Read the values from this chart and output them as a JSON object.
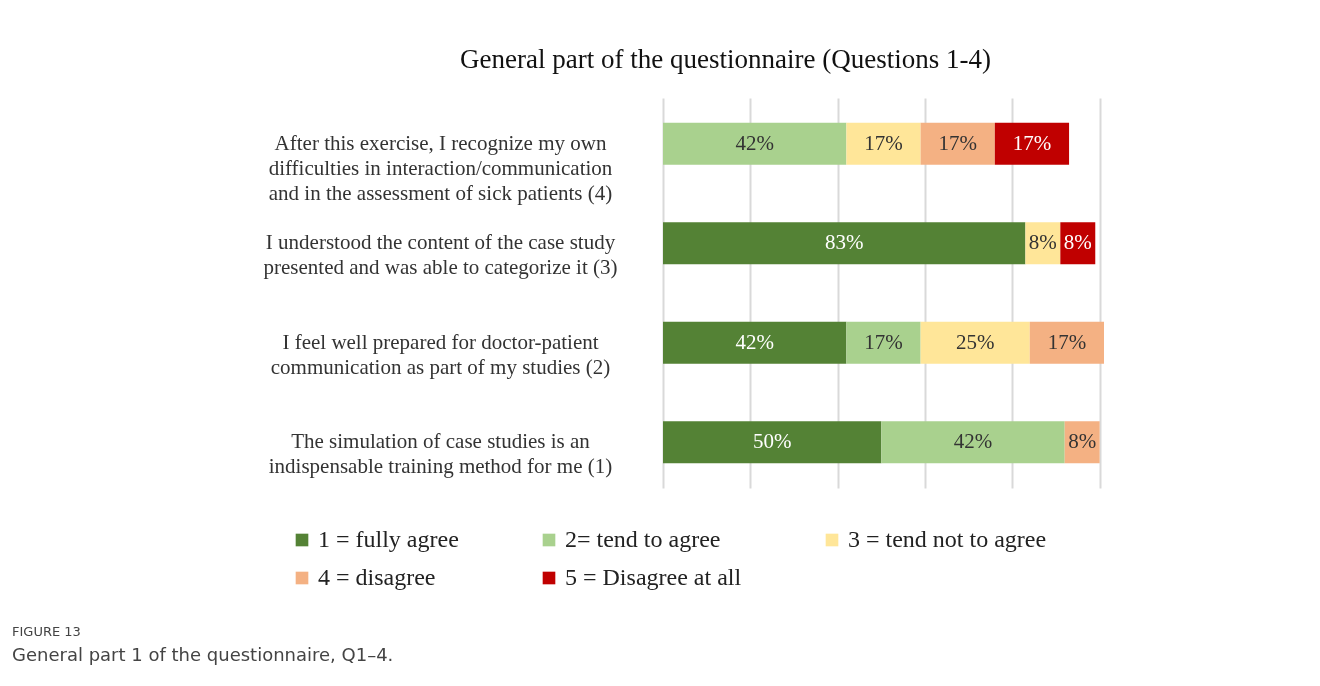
{
  "chart_data": {
    "type": "bar",
    "orientation": "horizontal",
    "stacked": true,
    "title": "General part of the questionnaire (Questions 1-4)",
    "categories": [
      "After this exercise, I recognize my own difficulties in interaction/communication and in the assessment of sick patients (4)",
      "I understood the content of the case study presented and was able to categorize it (3)",
      "I feel well prepared for doctor-patient communication as part of my studies (2)",
      "The simulation of case studies is an indispensable training method for me (1)"
    ],
    "series": [
      {
        "name": "1 = fully agree",
        "color": "#548235",
        "values": [
          null,
          83,
          42,
          50
        ],
        "value_labels": [
          null,
          "83%",
          "42%",
          "50%"
        ]
      },
      {
        "name": "2= tend to agree",
        "color": "#a9d18e",
        "values": [
          42,
          null,
          17,
          42
        ],
        "value_labels": [
          "42%",
          null,
          "17%",
          "42%"
        ]
      },
      {
        "name": "3 = tend not to agree",
        "color": "#ffe699",
        "values": [
          17,
          8,
          25,
          null
        ],
        "value_labels": [
          "17%",
          "8%",
          "25%",
          null
        ]
      },
      {
        "name": "4 = disagree",
        "color": "#f4b183",
        "values": [
          17,
          null,
          17,
          8
        ],
        "value_labels": [
          "17%",
          null,
          "17%",
          "8%"
        ]
      },
      {
        "name": "5 = Disagree at all",
        "color": "#c00000",
        "values": [
          17,
          8,
          null,
          null
        ],
        "value_labels": [
          "17%",
          "8%",
          null,
          null
        ]
      }
    ],
    "xlim": [
      0,
      101
    ],
    "xticks": [
      {
        "value": 0,
        "label": null
      },
      {
        "value": 20,
        "label": null
      },
      {
        "value": 40,
        "label": null
      },
      {
        "value": 60,
        "label": null
      },
      {
        "value": 80,
        "label": null
      },
      {
        "value": 100,
        "label": null
      }
    ],
    "grid": "x",
    "tick_labels": "y",
    "legend": "bottom",
    "annotations": [
      "FIGURE 13",
      "General part 1 of the questionnaire, Q1–4."
    ]
  }
}
